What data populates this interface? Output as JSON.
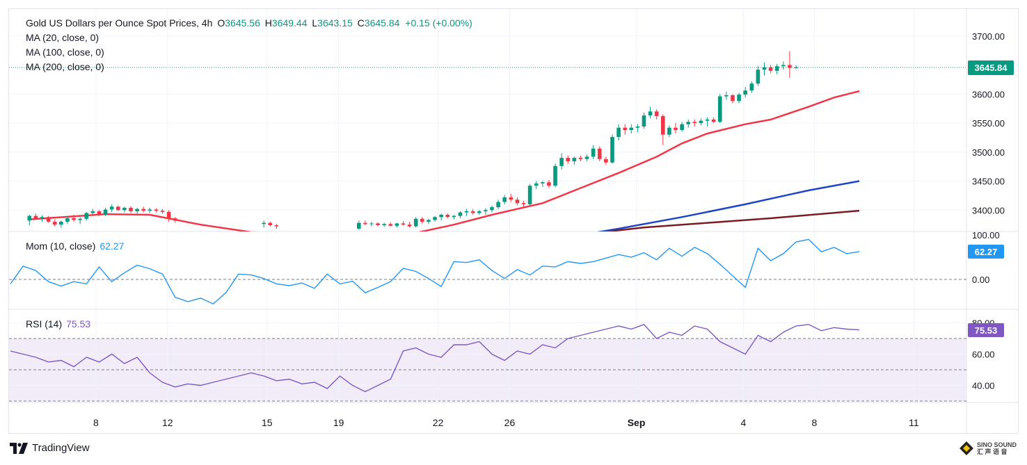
{
  "header": {
    "title": "Gold US Dollars per Ounce Spot Prices, 4h",
    "o_label": "O",
    "o_value": "3645.56",
    "h_label": "H",
    "h_value": "3649.44",
    "l_label": "L",
    "l_value": "3643.15",
    "c_label": "C",
    "c_value": "3645.84",
    "change": "+0.15 (+0.00%)"
  },
  "ma_labels": [
    "MA (20, close, 0)",
    "MA (100, close, 0)",
    "MA (200, close, 0)"
  ],
  "price_badge": "3645.84",
  "mom": {
    "label": "Mom (10, close)",
    "value": "62.27",
    "badge": "62.27"
  },
  "rsi": {
    "label": "RSI (14)",
    "value": "75.53",
    "badge": "75.53"
  },
  "brand": "TradingView",
  "watermark": [
    "SINO SOUND",
    "汇 声 语 音"
  ],
  "colors": {
    "up": "#089981",
    "down": "#f23645",
    "ma20": "#f23645",
    "ma100": "#1e44c8",
    "ma200": "#7b1b22",
    "mom": "#2196f3",
    "rsi": "#7e57c2",
    "rsi_band": "#ede7f6"
  },
  "chart_data": {
    "type": "candlestick",
    "timeframe": "4h",
    "x_tick_labels": [
      "8",
      "12",
      "15",
      "19",
      "22",
      "26",
      "Sep",
      "4",
      "8",
      "11"
    ],
    "price_axis": {
      "ticks": [
        3400,
        3450,
        3500,
        3550,
        3600,
        3650,
        3700
      ],
      "tick_labels": [
        "3400.00",
        "3450.00",
        "3500.00",
        "3550.00",
        "3600.00",
        "3650.00",
        "3700.00"
      ],
      "last": 3645.84
    },
    "ohlc_groups": [
      {
        "start_x": 3,
        "step": 1,
        "bars": [
          [
            3382,
            3392,
            3374,
            3390
          ],
          [
            3390,
            3394,
            3384,
            3386
          ],
          [
            3386,
            3391,
            3380,
            3388
          ],
          [
            3388,
            3390,
            3378,
            3380
          ],
          [
            3380,
            3384,
            3372,
            3375
          ],
          [
            3375,
            3382,
            3370,
            3380
          ],
          [
            3380,
            3390,
            3376,
            3386
          ],
          [
            3386,
            3392,
            3380,
            3383
          ],
          [
            3383,
            3388,
            3376,
            3385
          ],
          [
            3385,
            3397,
            3382,
            3395
          ],
          [
            3395,
            3402,
            3390,
            3398
          ],
          [
            3398,
            3400,
            3390,
            3392
          ],
          [
            3392,
            3404,
            3390,
            3401
          ],
          [
            3401,
            3410,
            3396,
            3406
          ],
          [
            3406,
            3408,
            3398,
            3400
          ],
          [
            3400,
            3406,
            3396,
            3404
          ],
          [
            3404,
            3407,
            3395,
            3398
          ],
          [
            3398,
            3404,
            3394,
            3402
          ],
          [
            3402,
            3406,
            3396,
            3399
          ],
          [
            3399,
            3404,
            3395,
            3401
          ],
          [
            3401,
            3403,
            3396,
            3399
          ],
          [
            3399,
            3402,
            3394,
            3397
          ],
          [
            3397,
            3400,
            3380,
            3386
          ],
          [
            3386,
            3388,
            3378,
            3382
          ]
        ]
      },
      {
        "start_x": 40,
        "step": 1,
        "bars": [
          [
            3376,
            3382,
            3370,
            3378
          ],
          [
            3378,
            3380,
            3372,
            3374
          ],
          [
            3374,
            3376,
            3368,
            3372
          ]
        ]
      },
      {
        "start_x": 55,
        "step": 1,
        "bars": [
          [
            3368,
            3382,
            3366,
            3378
          ],
          [
            3378,
            3382,
            3374,
            3376
          ],
          [
            3376,
            3380,
            3372,
            3377
          ],
          [
            3377,
            3379,
            3372,
            3374
          ],
          [
            3374,
            3378,
            3371,
            3376
          ],
          [
            3376,
            3379,
            3372,
            3373
          ],
          [
            3373,
            3378,
            3370,
            3377
          ],
          [
            3377,
            3381,
            3373,
            3375
          ],
          [
            3375,
            3380,
            3370,
            3372
          ],
          [
            3372,
            3388,
            3370,
            3385
          ],
          [
            3385,
            3388,
            3376,
            3380
          ],
          [
            3380,
            3385,
            3376,
            3383
          ],
          [
            3383,
            3390,
            3380,
            3388
          ],
          [
            3388,
            3394,
            3382,
            3392
          ],
          [
            3392,
            3394,
            3386,
            3388
          ],
          [
            3388,
            3392,
            3384,
            3390
          ],
          [
            3390,
            3398,
            3386,
            3396
          ],
          [
            3396,
            3402,
            3390,
            3398
          ],
          [
            3398,
            3402,
            3392,
            3395
          ],
          [
            3395,
            3400,
            3392,
            3398
          ],
          [
            3398,
            3403,
            3392,
            3400
          ],
          [
            3400,
            3408,
            3396,
            3405
          ],
          [
            3405,
            3418,
            3402,
            3414
          ],
          [
            3414,
            3426,
            3410,
            3422
          ],
          [
            3422,
            3428,
            3414,
            3418
          ],
          [
            3418,
            3422,
            3408,
            3412
          ],
          [
            3412,
            3416,
            3404,
            3410
          ],
          [
            3410,
            3445,
            3408,
            3442
          ],
          [
            3442,
            3450,
            3436,
            3446
          ],
          [
            3446,
            3450,
            3440,
            3448
          ],
          [
            3448,
            3452,
            3438,
            3442
          ],
          [
            3442,
            3480,
            3440,
            3476
          ],
          [
            3476,
            3498,
            3470,
            3490
          ],
          [
            3490,
            3494,
            3480,
            3484
          ],
          [
            3484,
            3492,
            3478,
            3490
          ],
          [
            3490,
            3494,
            3484,
            3488
          ],
          [
            3488,
            3496,
            3484,
            3492
          ],
          [
            3492,
            3512,
            3488,
            3506
          ],
          [
            3506,
            3510,
            3484,
            3488
          ],
          [
            3488,
            3492,
            3478,
            3482
          ],
          [
            3482,
            3530,
            3480,
            3526
          ],
          [
            3526,
            3548,
            3520,
            3542
          ],
          [
            3542,
            3548,
            3530,
            3538
          ],
          [
            3538,
            3548,
            3532,
            3542
          ],
          [
            3542,
            3548,
            3534,
            3544
          ],
          [
            3544,
            3568,
            3540,
            3563
          ],
          [
            3563,
            3578,
            3558,
            3570
          ],
          [
            3570,
            3574,
            3556,
            3562
          ],
          [
            3562,
            3565,
            3512,
            3530
          ],
          [
            3530,
            3546,
            3526,
            3542
          ],
          [
            3542,
            3550,
            3532,
            3538
          ],
          [
            3538,
            3552,
            3535,
            3548
          ],
          [
            3548,
            3556,
            3542,
            3552
          ],
          [
            3552,
            3556,
            3544,
            3550
          ],
          [
            3550,
            3558,
            3546,
            3554
          ],
          [
            3554,
            3560,
            3544,
            3556
          ],
          [
            3556,
            3560,
            3550,
            3552
          ],
          [
            3552,
            3600,
            3550,
            3596
          ],
          [
            3596,
            3604,
            3590,
            3598
          ],
          [
            3598,
            3600,
            3584,
            3588
          ],
          [
            3588,
            3602,
            3584,
            3599
          ],
          [
            3599,
            3612,
            3594,
            3606
          ],
          [
            3606,
            3622,
            3602,
            3618
          ],
          [
            3618,
            3648,
            3614,
            3642
          ],
          [
            3642,
            3654,
            3632,
            3646
          ],
          [
            3646,
            3650,
            3636,
            3640
          ],
          [
            3640,
            3652,
            3634,
            3648
          ],
          [
            3648,
            3656,
            3642,
            3650
          ],
          [
            3650,
            3674,
            3628,
            3645
          ],
          [
            3645.56,
            3649.44,
            3643.15,
            3645.84
          ]
        ]
      }
    ],
    "ma20": [
      [
        3,
        3384
      ],
      [
        15,
        3393
      ],
      [
        22,
        3392
      ],
      [
        30,
        3375
      ],
      [
        38,
        3362
      ],
      [
        62,
        3356
      ],
      [
        70,
        3375
      ],
      [
        76,
        3392
      ],
      [
        84,
        3412
      ],
      [
        90,
        3438
      ],
      [
        96,
        3464
      ],
      [
        102,
        3492
      ],
      [
        106,
        3515
      ],
      [
        110,
        3532
      ],
      [
        116,
        3548
      ],
      [
        120,
        3556
      ],
      [
        126,
        3578
      ],
      [
        130,
        3594
      ],
      [
        134,
        3605
      ]
    ],
    "ma100": [
      [
        62,
        3292
      ],
      [
        80,
        3330
      ],
      [
        90,
        3357
      ],
      [
        96,
        3368
      ],
      [
        106,
        3388
      ],
      [
        116,
        3410
      ],
      [
        126,
        3434
      ],
      [
        134,
        3450
      ]
    ],
    "ma200": [
      [
        62,
        3300
      ],
      [
        80,
        3338
      ],
      [
        90,
        3358
      ],
      [
        100,
        3370
      ],
      [
        110,
        3378
      ],
      [
        120,
        3386
      ],
      [
        134,
        3399
      ]
    ],
    "momentum": {
      "ticks": [
        0,
        100
      ],
      "tick_labels": [
        "0.00",
        "100.00"
      ],
      "values": [
        [
          0,
          -10
        ],
        [
          2,
          30
        ],
        [
          4,
          20
        ],
        [
          6,
          -5
        ],
        [
          8,
          -15
        ],
        [
          10,
          -5
        ],
        [
          12,
          -10
        ],
        [
          14,
          28
        ],
        [
          16,
          -5
        ],
        [
          18,
          15
        ],
        [
          20,
          32
        ],
        [
          22,
          24
        ],
        [
          24,
          12
        ],
        [
          26,
          -40
        ],
        [
          28,
          -50
        ],
        [
          30,
          -42
        ],
        [
          32,
          -55
        ],
        [
          34,
          -30
        ],
        [
          36,
          12
        ],
        [
          38,
          10
        ],
        [
          40,
          2
        ],
        [
          42,
          -10
        ],
        [
          44,
          -14
        ],
        [
          46,
          -8
        ],
        [
          48,
          -20
        ],
        [
          50,
          12
        ],
        [
          52,
          -10
        ],
        [
          54,
          -4
        ],
        [
          56,
          -30
        ],
        [
          58,
          -18
        ],
        [
          60,
          -5
        ],
        [
          62,
          25
        ],
        [
          64,
          18
        ],
        [
          66,
          2
        ],
        [
          68,
          -16
        ],
        [
          70,
          40
        ],
        [
          72,
          38
        ],
        [
          74,
          44
        ],
        [
          76,
          20
        ],
        [
          78,
          2
        ],
        [
          80,
          22
        ],
        [
          82,
          10
        ],
        [
          84,
          30
        ],
        [
          86,
          28
        ],
        [
          88,
          40
        ],
        [
          90,
          36
        ],
        [
          92,
          40
        ],
        [
          94,
          48
        ],
        [
          96,
          56
        ],
        [
          98,
          50
        ],
        [
          100,
          60
        ],
        [
          102,
          44
        ],
        [
          104,
          70
        ],
        [
          106,
          52
        ],
        [
          108,
          72
        ],
        [
          110,
          58
        ],
        [
          112,
          34
        ],
        [
          114,
          8
        ],
        [
          116,
          -18
        ],
        [
          118,
          70
        ],
        [
          120,
          42
        ],
        [
          122,
          58
        ],
        [
          124,
          84
        ],
        [
          126,
          90
        ],
        [
          128,
          62
        ],
        [
          130,
          72
        ],
        [
          132,
          58
        ],
        [
          134,
          62.27
        ]
      ]
    },
    "rsi": {
      "ticks": [
        40,
        60,
        80
      ],
      "tick_labels": [
        "40.00",
        "60.00",
        "80.00"
      ],
      "band": [
        30,
        70
      ],
      "values": [
        [
          0,
          62
        ],
        [
          2,
          60
        ],
        [
          4,
          58
        ],
        [
          6,
          55
        ],
        [
          8,
          56
        ],
        [
          10,
          52
        ],
        [
          12,
          58
        ],
        [
          14,
          55
        ],
        [
          16,
          60
        ],
        [
          18,
          54
        ],
        [
          20,
          58
        ],
        [
          22,
          48
        ],
        [
          24,
          42
        ],
        [
          26,
          39
        ],
        [
          28,
          41
        ],
        [
          30,
          40
        ],
        [
          32,
          42
        ],
        [
          34,
          44
        ],
        [
          36,
          46
        ],
        [
          38,
          48
        ],
        [
          40,
          46
        ],
        [
          42,
          43
        ],
        [
          44,
          44
        ],
        [
          46,
          41
        ],
        [
          48,
          42
        ],
        [
          50,
          38
        ],
        [
          52,
          46
        ],
        [
          54,
          40
        ],
        [
          56,
          36
        ],
        [
          58,
          40
        ],
        [
          60,
          44
        ],
        [
          62,
          62
        ],
        [
          64,
          64
        ],
        [
          66,
          60
        ],
        [
          68,
          58
        ],
        [
          70,
          66
        ],
        [
          72,
          66
        ],
        [
          74,
          68
        ],
        [
          76,
          60
        ],
        [
          78,
          56
        ],
        [
          80,
          62
        ],
        [
          82,
          60
        ],
        [
          84,
          66
        ],
        [
          86,
          64
        ],
        [
          88,
          70
        ],
        [
          90,
          72
        ],
        [
          92,
          74
        ],
        [
          94,
          76
        ],
        [
          96,
          78
        ],
        [
          98,
          76
        ],
        [
          100,
          79
        ],
        [
          102,
          70
        ],
        [
          104,
          74
        ],
        [
          106,
          72
        ],
        [
          108,
          78
        ],
        [
          110,
          76
        ],
        [
          112,
          68
        ],
        [
          114,
          64
        ],
        [
          116,
          60
        ],
        [
          118,
          72
        ],
        [
          120,
          68
        ],
        [
          122,
          74
        ],
        [
          124,
          78
        ],
        [
          126,
          79
        ],
        [
          128,
          75
        ],
        [
          130,
          77
        ],
        [
          132,
          76
        ],
        [
          134,
          75.53
        ]
      ]
    }
  }
}
